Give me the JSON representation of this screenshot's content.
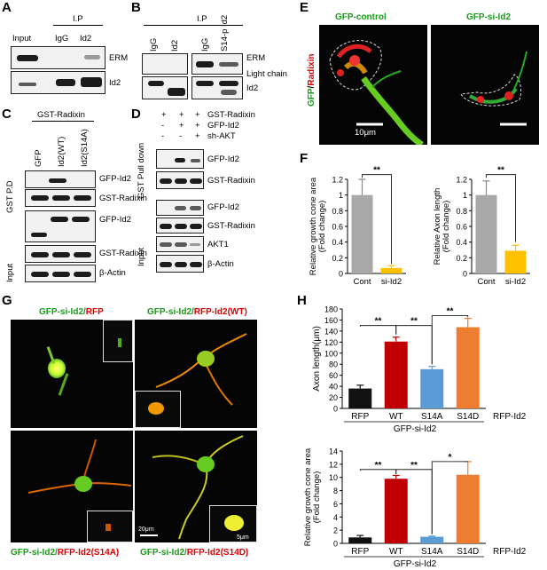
{
  "panel_labels": {
    "a": "A",
    "b": "B",
    "c": "C",
    "d": "D",
    "e": "E",
    "f": "F",
    "g": "G",
    "h": "H"
  },
  "panel_a": {
    "ip": "I.P",
    "lanes": [
      "Input",
      "IgG",
      "Id2"
    ],
    "rows": [
      "ERM",
      "Id2"
    ]
  },
  "panel_b": {
    "ip": "I.P",
    "lanes": [
      "IgG",
      "Id2",
      "IgG",
      "S14-p Id2"
    ],
    "rows": [
      "ERM",
      "Light chain",
      "Id2"
    ]
  },
  "panel_c": {
    "header": "GST-Radixin",
    "lanes": [
      "GFP",
      "Id2(WT)",
      "Id2(S14A)"
    ],
    "pd_label": "GST P.D",
    "input_label": "Input",
    "rows": [
      "GFP-Id2",
      "GST-Radixin",
      "GFP-Id2",
      "GST-Radixin",
      "β-Actin"
    ]
  },
  "panel_d": {
    "conditions": [
      {
        "name": "GST-Radixin",
        "marks": [
          "+",
          "+",
          "+"
        ]
      },
      {
        "name": "GFP-Id2",
        "marks": [
          "-",
          "+",
          "+"
        ]
      },
      {
        "name": "sh-AKT",
        "marks": [
          "-",
          "-",
          "+"
        ]
      }
    ],
    "pd_label": "GST Pull down",
    "input_label": "Input",
    "rows": [
      "GFP-Id2",
      "GST-Radixin",
      "GFP-Id2",
      "GST-Radixin",
      "AKT1",
      "β-Actin"
    ]
  },
  "panel_e": {
    "titles": [
      "GFP-control",
      "GFP-si-Id2"
    ],
    "side_label_green": "GFP",
    "side_label_sep": "/",
    "side_label_red": "Radixin",
    "scale": "10μm"
  },
  "panel_f": {
    "chart_a_axis_label": "Relative growth cone area (Fold change)",
    "chart_b_axis_label": "Relative Axon length (Fold change)",
    "sig": "**"
  },
  "panel_g": {
    "titles": [
      {
        "green": "GFP-si-Id2/",
        "red": "RFP"
      },
      {
        "green": "GFP-si-Id2/",
        "red": "RFP-Id2(WT)"
      },
      {
        "green": "GFP-si-Id2/",
        "red": "RFP-Id2(S14A)"
      },
      {
        "green": "GFP-si-Id2/",
        "red": "RFP-Id2(S14D)"
      }
    ],
    "scale_big": "20μm",
    "scale_small": "5μm"
  },
  "panel_h": {
    "group_label": "GFP-si-Id2",
    "suffix": "RFP-Id2",
    "top_axis_label": "Axon length(μm)",
    "bottom_axis_label": "Relative growth cone area (Fold change)",
    "sig_double": "**",
    "sig_single": "*"
  },
  "colors": {
    "gray": "#a8a8a8",
    "yellow": "#ffc000",
    "black": "#111111",
    "red": "#c00000",
    "blue": "#5b9bd5",
    "orange": "#ed7d31",
    "green_text": "#1a9a1a",
    "red_text": "#e00000"
  },
  "chart_data": [
    {
      "type": "bar",
      "ylabel": "Relative growth cone area (Fold change)",
      "categories": [
        "Cont",
        "si-Id2"
      ],
      "values": [
        1.0,
        0.07
      ],
      "ylim": [
        0,
        1.2
      ],
      "yticks": [
        0,
        0.2,
        0.4,
        0.6,
        0.8,
        1.0,
        1.2
      ]
    },
    {
      "type": "bar",
      "ylabel": "Relative Axon length (Fold change)",
      "categories": [
        "Cont",
        "si-Id2"
      ],
      "values": [
        1.0,
        0.29
      ],
      "ylim": [
        0,
        1.2
      ],
      "yticks": [
        0,
        0.2,
        0.4,
        0.6,
        0.8,
        1.0,
        1.2
      ]
    },
    {
      "type": "bar",
      "ylabel": "Axon length(μm)",
      "categories": [
        "RFP",
        "WT",
        "S14A",
        "S14D"
      ],
      "values": [
        36,
        121,
        71,
        147
      ],
      "ylim": [
        0,
        180
      ],
      "yticks": [
        0,
        20,
        40,
        60,
        80,
        100,
        120,
        140,
        160,
        180
      ]
    },
    {
      "type": "bar",
      "ylabel": "Relative growth cone area (Fold change)",
      "categories": [
        "RFP",
        "WT",
        "S14A",
        "S14D"
      ],
      "values": [
        0.9,
        9.8,
        1.0,
        10.4
      ],
      "ylim": [
        0,
        14
      ],
      "yticks": [
        0,
        2,
        4,
        6,
        8,
        10,
        12,
        14
      ]
    }
  ]
}
